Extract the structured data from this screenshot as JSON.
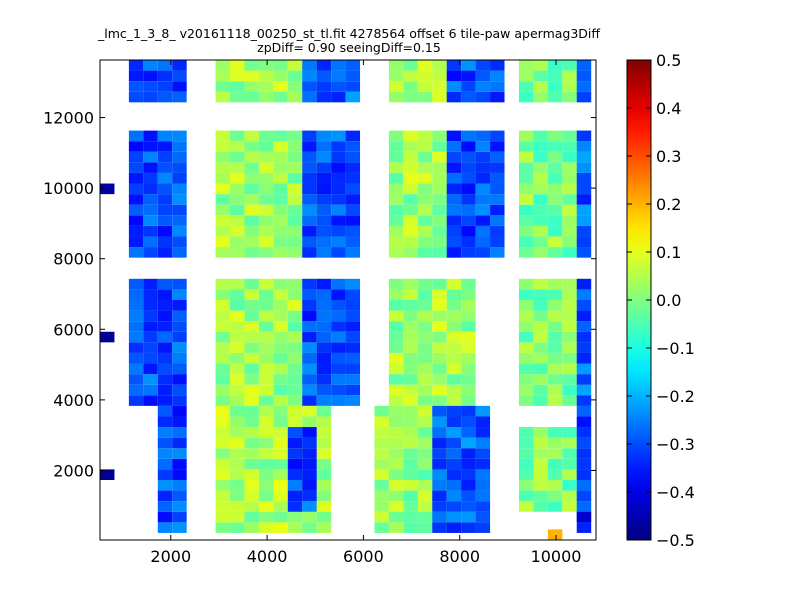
{
  "chart_data": {
    "type": "heatmap",
    "title": "_lmc_1_3_8_ v20161118_00250_st_tl.fit 4278564 offset 6 tile-paw apermag3Diff",
    "subtitle": "zpDiff= 0.90 seeingDiff=0.15",
    "xlabel": "",
    "ylabel": "",
    "xlim": [
      530,
      10830
    ],
    "ylim": [
      30,
      13630
    ],
    "xticks": [
      2000,
      4000,
      6000,
      8000,
      10000
    ],
    "yticks": [
      2000,
      4000,
      6000,
      8000,
      10000,
      12000
    ],
    "xtick_labels": [
      "2000",
      "4000",
      "6000",
      "8000",
      "10000"
    ],
    "ytick_labels": [
      "2000",
      "4000",
      "6000",
      "8000",
      "10000",
      "12000"
    ],
    "colormap": "jet",
    "color_range": [
      -0.5,
      0.5
    ],
    "colorbar_ticks": [
      0.5,
      0.4,
      0.3,
      0.2,
      0.1,
      0.0,
      -0.1,
      -0.2,
      -0.3,
      -0.4,
      -0.5
    ],
    "colorbar_tick_labels": [
      "0.5",
      "0.4",
      "0.3",
      "0.2",
      "0.1",
      "0.0",
      "−0.1",
      "−0.2",
      "−0.3",
      "−0.4",
      "−0.5"
    ],
    "grid": false,
    "cell_size": 300,
    "x_origin": 530,
    "y_origin": 30,
    "rows_top_to_bottom": [
      ".1..........M.....22..M...M2........",
      ".33......2..E4.......IFF.4..DM......",
      ".44.N.C.....M..N......FM.F.MMD..Y..M",
      ".23..D.MMM...FI.YFM..3.M.4...2......",
      ".1...M..HKHH.J.....21.....HN.2..MMM",
      ".3333...3HF..2BD.......R...U..MM..M",
      ".1...P..HHHHNEDA......MJHN..LMK.4444",
      "................................",
      "................................",
      "................................",
      "................................",
      "................................",
      "...................................",
      ".............3.............Z.......",
      "X2333...MPMM222...MMMB222...NMM2...",
      ".3.Z.........F2....MMM22......",
      ".1...GG....3.................",
      ".......................",
      ".......................",
      ".......................",
      ".......................",
      ".......................",
      ".......................",
      "X.2.....MMMM2........2..........",
      ".22.R...MMMM2.........2.........",
      ".22..................",
      ".......................",
      ".......................",
      ".......................",
      ".......................",
      ".......................",
      ".......................",
      ".......................",
      ".......................",
      ".......................",
      ".......................",
      ".......................",
      ".......................",
      ".......................",
      ".......................",
      ".......................",
      ".......................",
      ".......................",
      ".......................",
      "......................."
    ],
    "cells": []
  }
}
